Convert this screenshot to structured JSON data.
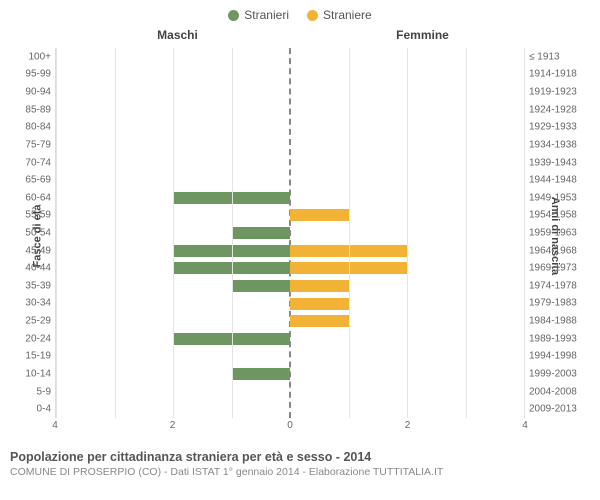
{
  "legend": {
    "male": {
      "label": "Stranieri",
      "color": "#6e9661"
    },
    "female": {
      "label": "Straniere",
      "color": "#f2b235"
    }
  },
  "headers": {
    "left": "Maschi",
    "right": "Femmine"
  },
  "yaxis_left_label": "Fasce di età",
  "yaxis_right_label": "Anni di nascita",
  "x_max": 4,
  "x_ticks_left": [
    4,
    2,
    0
  ],
  "x_ticks_right": [
    0,
    2,
    4
  ],
  "colors": {
    "grid": "#e4e4e4",
    "centerline": "#888888",
    "text": "#555555",
    "background": "#ffffff"
  },
  "rows": [
    {
      "age": "100+",
      "birth": "≤ 1913",
      "m": 0,
      "f": 0
    },
    {
      "age": "95-99",
      "birth": "1914-1918",
      "m": 0,
      "f": 0
    },
    {
      "age": "90-94",
      "birth": "1919-1923",
      "m": 0,
      "f": 0
    },
    {
      "age": "85-89",
      "birth": "1924-1928",
      "m": 0,
      "f": 0
    },
    {
      "age": "80-84",
      "birth": "1929-1933",
      "m": 0,
      "f": 0
    },
    {
      "age": "75-79",
      "birth": "1934-1938",
      "m": 0,
      "f": 0
    },
    {
      "age": "70-74",
      "birth": "1939-1943",
      "m": 0,
      "f": 0
    },
    {
      "age": "65-69",
      "birth": "1944-1948",
      "m": 0,
      "f": 0
    },
    {
      "age": "60-64",
      "birth": "1949-1953",
      "m": 2,
      "f": 0
    },
    {
      "age": "55-59",
      "birth": "1954-1958",
      "m": 0,
      "f": 1
    },
    {
      "age": "50-54",
      "birth": "1959-1963",
      "m": 1,
      "f": 0
    },
    {
      "age": "45-49",
      "birth": "1964-1968",
      "m": 2,
      "f": 2
    },
    {
      "age": "40-44",
      "birth": "1969-1973",
      "m": 2,
      "f": 2
    },
    {
      "age": "35-39",
      "birth": "1974-1978",
      "m": 1,
      "f": 1
    },
    {
      "age": "30-34",
      "birth": "1979-1983",
      "m": 0,
      "f": 1
    },
    {
      "age": "25-29",
      "birth": "1984-1988",
      "m": 0,
      "f": 1
    },
    {
      "age": "20-24",
      "birth": "1989-1993",
      "m": 2,
      "f": 0
    },
    {
      "age": "15-19",
      "birth": "1994-1998",
      "m": 0,
      "f": 0
    },
    {
      "age": "10-14",
      "birth": "1999-2003",
      "m": 1,
      "f": 0
    },
    {
      "age": "5-9",
      "birth": "2004-2008",
      "m": 0,
      "f": 0
    },
    {
      "age": "0-4",
      "birth": "2009-2013",
      "m": 0,
      "f": 0
    }
  ],
  "caption": "Popolazione per cittadinanza straniera per età e sesso - 2014",
  "subcaption": "COMUNE DI PROSERPIO (CO) - Dati ISTAT 1° gennaio 2014 - Elaborazione TUTTITALIA.IT"
}
